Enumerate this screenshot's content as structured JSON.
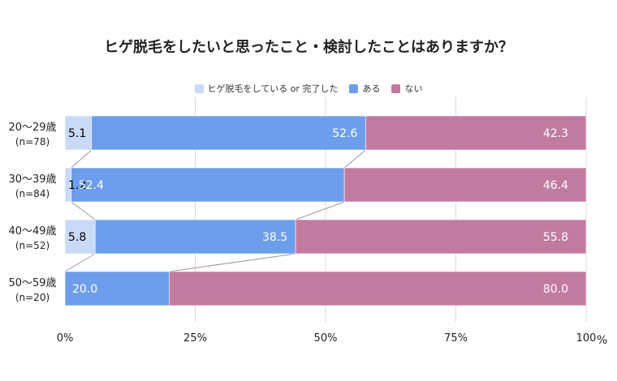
{
  "chart_data": {
    "type": "bar",
    "orientation": "horizontal",
    "stacked": true,
    "title": "ヒゲ脱毛をしたいと思ったこと・検討したことはありますか？",
    "categories": [
      "20〜29歳",
      "30〜39歳",
      "40〜49歳",
      "50〜59歳"
    ],
    "category_notes": [
      "(n=78)",
      "(n=84)",
      "(n=52)",
      "(n=20)"
    ],
    "series": [
      {
        "name": "ヒゲ脱毛をしている or 完了した",
        "color": "#c9daf8",
        "label_color": "#000000",
        "values": [
          5.1,
          1.2,
          5.8,
          0
        ]
      },
      {
        "name": "ある",
        "color": "#6d9eeb",
        "label_color": "#ffffff",
        "values": [
          52.6,
          52.4,
          38.5,
          20.0
        ]
      },
      {
        "name": "ない",
        "color": "#c27ba0",
        "label_color": "#ffffff",
        "values": [
          42.3,
          46.4,
          55.8,
          80.0
        ]
      }
    ],
    "data_labels": [
      [
        "5.1",
        "52.6",
        "42.3"
      ],
      [
        "1.2",
        "52.4",
        "46.4"
      ],
      [
        "5.8",
        "38.5",
        "55.8"
      ],
      [
        "",
        "20.0",
        "80.0"
      ]
    ],
    "xlim": [
      0,
      100
    ],
    "x_ticks": [
      0,
      25,
      50,
      75,
      100
    ],
    "x_tick_labels": [
      "0%",
      "25%",
      "50%",
      "75%",
      "100"
    ],
    "x_unit": "%",
    "grid": true,
    "legend_position": "top",
    "connector_lines": true
  }
}
